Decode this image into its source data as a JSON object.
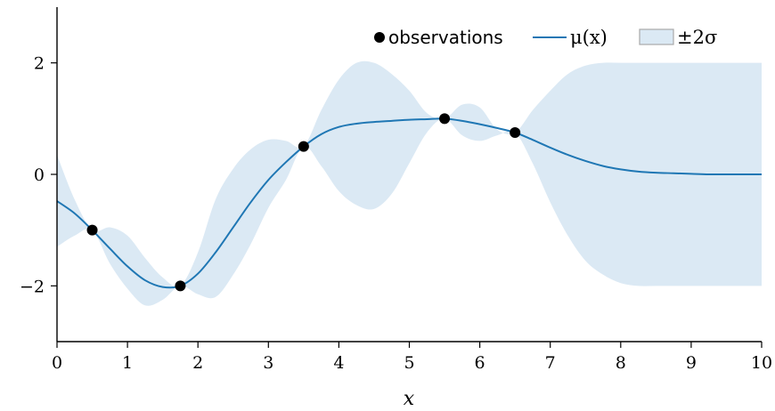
{
  "chart_data": {
    "type": "line",
    "title": "",
    "xlabel": "x",
    "ylabel": "",
    "xlim": [
      0,
      10
    ],
    "ylim": [
      -3,
      3
    ],
    "x_ticks": [
      0,
      1,
      2,
      3,
      4,
      5,
      6,
      7,
      8,
      9,
      10
    ],
    "x_tick_labels": [
      "0",
      "1",
      "2",
      "3",
      "4",
      "5",
      "6",
      "7",
      "8",
      "9",
      "10"
    ],
    "y_ticks": [
      -2,
      0,
      2
    ],
    "y_tick_labels": [
      "−2",
      "0",
      "2"
    ],
    "grid": false,
    "legend_position": "top-right",
    "observations": {
      "name": "observations",
      "x": [
        0.5,
        1.75,
        3.5,
        5.5,
        6.5
      ],
      "y": [
        -1.0,
        -2.0,
        0.5,
        1.0,
        0.75
      ]
    },
    "mean": {
      "name": "μ(x)",
      "x": [
        0,
        0.25,
        0.5,
        0.75,
        1.0,
        1.25,
        1.5,
        1.75,
        2.0,
        2.25,
        2.5,
        2.75,
        3.0,
        3.25,
        3.5,
        3.75,
        4.0,
        4.25,
        4.5,
        4.75,
        5.0,
        5.25,
        5.5,
        5.75,
        6.0,
        6.25,
        6.5,
        6.75,
        7.0,
        7.25,
        7.5,
        7.75,
        8.0,
        8.25,
        8.5,
        8.75,
        9.0,
        9.25,
        9.5,
        9.75,
        10.0
      ],
      "y": [
        -0.48,
        -0.7,
        -1.0,
        -1.33,
        -1.65,
        -1.9,
        -2.02,
        -2.0,
        -1.78,
        -1.4,
        -0.95,
        -0.5,
        -0.1,
        0.22,
        0.5,
        0.72,
        0.85,
        0.91,
        0.94,
        0.96,
        0.98,
        0.99,
        1.0,
        0.96,
        0.9,
        0.83,
        0.75,
        0.62,
        0.48,
        0.35,
        0.24,
        0.15,
        0.09,
        0.05,
        0.03,
        0.02,
        0.01,
        0.0,
        0.0,
        0.0,
        0.0
      ]
    },
    "band": {
      "name": "±2σ",
      "x": [
        0,
        0.25,
        0.5,
        0.75,
        1.0,
        1.25,
        1.5,
        1.75,
        2.0,
        2.25,
        2.5,
        2.75,
        3.0,
        3.25,
        3.5,
        3.75,
        4.0,
        4.25,
        4.5,
        4.75,
        5.0,
        5.25,
        5.5,
        5.75,
        6.0,
        6.25,
        6.5,
        6.75,
        7.0,
        7.25,
        7.5,
        7.75,
        8.0,
        8.25,
        8.5,
        8.75,
        9.0,
        9.25,
        9.5,
        9.75,
        10.0
      ],
      "upper": [
        0.35,
        -0.45,
        -1.0,
        -0.95,
        -1.1,
        -1.5,
        -1.85,
        -2.0,
        -1.4,
        -0.45,
        0.1,
        0.45,
        0.62,
        0.6,
        0.5,
        1.15,
        1.7,
        2.0,
        2.0,
        1.8,
        1.5,
        1.1,
        1.0,
        1.25,
        1.2,
        0.8,
        0.75,
        1.15,
        1.5,
        1.8,
        1.95,
        2.0,
        2.0,
        2.0,
        2.0,
        2.0,
        2.0,
        2.0,
        2.0,
        2.0,
        2.0
      ],
      "lower": [
        -1.3,
        -1.1,
        -1.0,
        -1.6,
        -2.05,
        -2.35,
        -2.25,
        -2.0,
        -2.15,
        -2.2,
        -1.8,
        -1.25,
        -0.6,
        -0.1,
        0.5,
        0.15,
        -0.3,
        -0.55,
        -0.62,
        -0.35,
        0.2,
        0.75,
        1.0,
        0.7,
        0.6,
        0.7,
        0.75,
        0.2,
        -0.5,
        -1.1,
        -1.55,
        -1.8,
        -1.95,
        -2.0,
        -2.0,
        -2.0,
        -2.0,
        -2.0,
        -2.0,
        -2.0,
        -2.0
      ]
    },
    "colors": {
      "mean_line": "#1f77b4",
      "band_fill": "#dbe9f4",
      "band_edge": "#a9a9a9",
      "observations": "#000000",
      "axis": "#000000"
    }
  },
  "legend": {
    "observations_label": "observations",
    "mean_label": "μ(x)",
    "band_label": "±2σ"
  }
}
